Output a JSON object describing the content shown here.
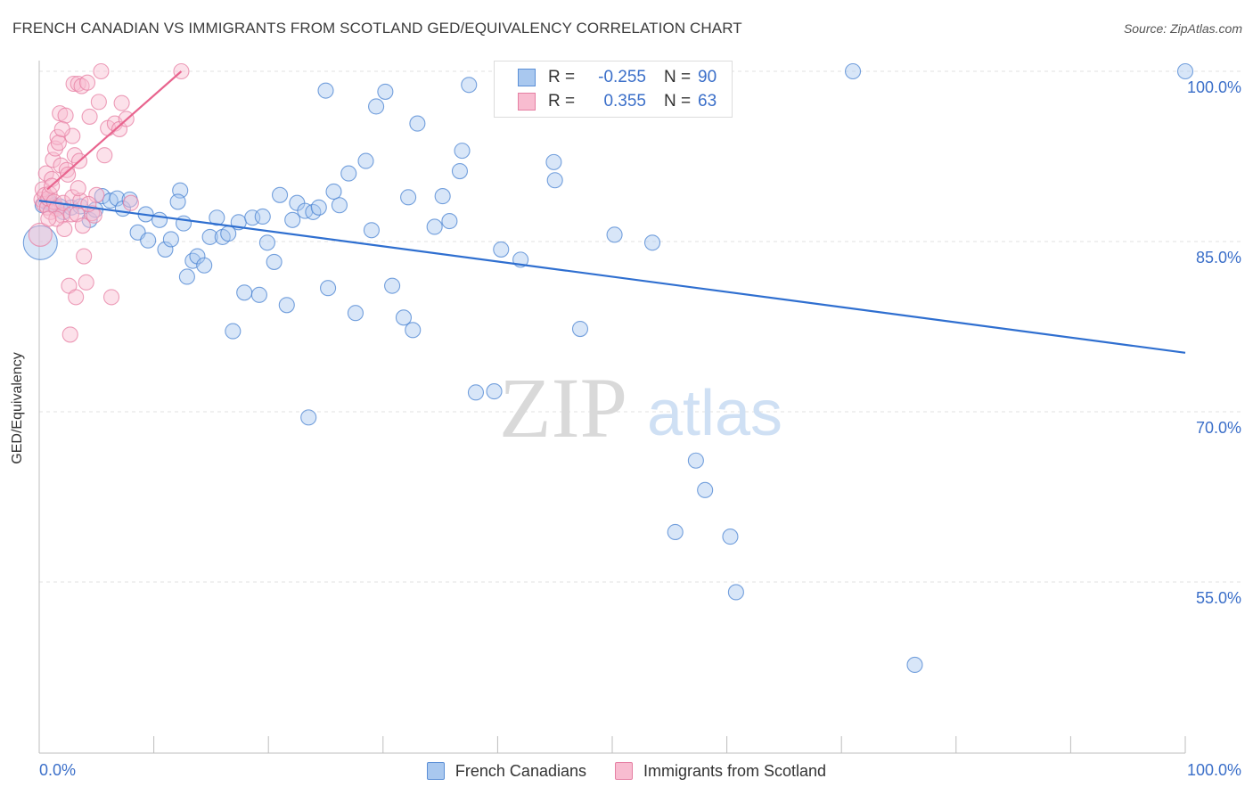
{
  "title": "FRENCH CANADIAN VS IMMIGRANTS FROM SCOTLAND GED/EQUIVALENCY CORRELATION CHART",
  "source": "Source: ZipAtlas.com",
  "watermark": {
    "zip": "ZIP",
    "atlas": "atlas"
  },
  "legend": {
    "r_label": "R =",
    "n_label": "N =",
    "rows": [
      {
        "r": "-0.255",
        "n": "90",
        "color": "#a9c8ef",
        "stroke": "#5b8fd6"
      },
      {
        "r": "0.355",
        "n": "63",
        "color": "#f8bcd0",
        "stroke": "#e57fa3"
      }
    ]
  },
  "chart_data": {
    "type": "scatter",
    "title": "FRENCH CANADIAN VS IMMIGRANTS FROM SCOTLAND GED/EQUIVALENCY CORRELATION CHART",
    "xlabel": "",
    "ylabel": "GED/Equivalency",
    "xlim": [
      0,
      100
    ],
    "ylim": [
      40,
      100
    ],
    "x_tick_labels": [
      "0.0%",
      "100.0%"
    ],
    "y_ticks": [
      55,
      70,
      85,
      100
    ],
    "y_tick_labels": [
      "55.0%",
      "70.0%",
      "85.0%",
      "100.0%"
    ],
    "grid": true,
    "legend_position": "bottom-center",
    "series": [
      {
        "name": "French Canadians",
        "color": "#a9c8ef",
        "stroke": "#4a83d2",
        "trend_color": "#2f6fd0",
        "trend": {
          "x": [
            0,
            100
          ],
          "y": [
            88.6,
            75.2
          ]
        },
        "points": [
          [
            0.1,
            84.9
          ],
          [
            0.3,
            88.2
          ],
          [
            0.6,
            88.5
          ],
          [
            1.0,
            88.4
          ],
          [
            1.3,
            88.2
          ],
          [
            1.8,
            88.1
          ],
          [
            2.1,
            87.6
          ],
          [
            2.8,
            88.0
          ],
          [
            3.6,
            88.1
          ],
          [
            4.4,
            86.9
          ],
          [
            4.9,
            87.8
          ],
          [
            5.5,
            89.0
          ],
          [
            6.2,
            88.6
          ],
          [
            6.8,
            88.8
          ],
          [
            7.3,
            87.9
          ],
          [
            7.9,
            88.7
          ],
          [
            8.6,
            85.8
          ],
          [
            9.3,
            87.4
          ],
          [
            9.5,
            85.1
          ],
          [
            10.5,
            86.9
          ],
          [
            11.0,
            84.3
          ],
          [
            11.5,
            85.2
          ],
          [
            12.3,
            89.5
          ],
          [
            12.6,
            86.6
          ],
          [
            12.9,
            81.9
          ],
          [
            13.4,
            83.3
          ],
          [
            13.8,
            83.7
          ],
          [
            14.4,
            82.9
          ],
          [
            14.9,
            85.4
          ],
          [
            15.5,
            87.1
          ],
          [
            16.0,
            85.4
          ],
          [
            16.5,
            85.7
          ],
          [
            16.9,
            77.1
          ],
          [
            17.4,
            86.7
          ],
          [
            17.9,
            80.5
          ],
          [
            18.6,
            87.1
          ],
          [
            19.2,
            80.3
          ],
          [
            19.5,
            87.2
          ],
          [
            19.9,
            84.9
          ],
          [
            20.5,
            83.2
          ],
          [
            21.0,
            89.1
          ],
          [
            21.6,
            79.4
          ],
          [
            22.1,
            86.9
          ],
          [
            22.5,
            88.4
          ],
          [
            23.2,
            87.7
          ],
          [
            23.5,
            69.5
          ],
          [
            23.9,
            87.6
          ],
          [
            24.4,
            88.0
          ],
          [
            25.0,
            98.3
          ],
          [
            25.2,
            80.9
          ],
          [
            25.7,
            89.4
          ],
          [
            26.2,
            88.2
          ],
          [
            27.0,
            91.0
          ],
          [
            27.6,
            78.7
          ],
          [
            28.5,
            92.1
          ],
          [
            29.0,
            86.0
          ],
          [
            29.4,
            96.9
          ],
          [
            30.2,
            98.2
          ],
          [
            30.8,
            81.1
          ],
          [
            31.8,
            78.3
          ],
          [
            32.2,
            88.9
          ],
          [
            32.6,
            77.2
          ],
          [
            33.0,
            95.4
          ],
          [
            34.5,
            86.3
          ],
          [
            35.2,
            89.0
          ],
          [
            35.8,
            86.8
          ],
          [
            36.7,
            91.2
          ],
          [
            36.9,
            93.0
          ],
          [
            37.5,
            98.8
          ],
          [
            38.1,
            71.7
          ],
          [
            39.7,
            71.8
          ],
          [
            40.3,
            84.3
          ],
          [
            42.0,
            83.4
          ],
          [
            44.9,
            92.0
          ],
          [
            45.0,
            90.4
          ],
          [
            47.2,
            77.3
          ],
          [
            48.3,
            100.1
          ],
          [
            50.2,
            85.6
          ],
          [
            52.0,
            100.2
          ],
          [
            53.5,
            84.9
          ],
          [
            55.5,
            59.4
          ],
          [
            57.3,
            65.7
          ],
          [
            58.1,
            63.1
          ],
          [
            60.3,
            59.0
          ],
          [
            60.8,
            54.1
          ],
          [
            76.4,
            47.7
          ],
          [
            71.0,
            100.0
          ],
          [
            100.0,
            100.0
          ],
          [
            46.8,
            100.1
          ],
          [
            12.1,
            88.5
          ]
        ]
      },
      {
        "name": "Immigrants from Scotland",
        "color": "#f8bcd0",
        "stroke": "#e77fa3",
        "trend_color": "#e8648e",
        "trend": {
          "x": [
            0.7,
            12.4
          ],
          "y": [
            89.6,
            100.0
          ]
        },
        "points": [
          [
            0.1,
            85.6
          ],
          [
            0.2,
            88.7
          ],
          [
            0.3,
            89.6
          ],
          [
            0.4,
            88.3
          ],
          [
            0.5,
            89.1
          ],
          [
            0.6,
            91.0
          ],
          [
            0.7,
            88.0
          ],
          [
            0.8,
            88.8
          ],
          [
            0.9,
            89.2
          ],
          [
            1.0,
            87.6
          ],
          [
            1.1,
            90.5
          ],
          [
            1.2,
            92.2
          ],
          [
            1.3,
            88.5
          ],
          [
            1.4,
            93.2
          ],
          [
            1.5,
            87.9
          ],
          [
            1.6,
            94.2
          ],
          [
            1.7,
            93.7
          ],
          [
            1.8,
            96.3
          ],
          [
            1.9,
            91.7
          ],
          [
            2.0,
            87.3
          ],
          [
            2.1,
            88.4
          ],
          [
            2.2,
            86.1
          ],
          [
            2.3,
            96.1
          ],
          [
            2.4,
            91.3
          ],
          [
            2.5,
            90.9
          ],
          [
            2.6,
            81.1
          ],
          [
            2.7,
            76.8
          ],
          [
            2.8,
            87.4
          ],
          [
            2.9,
            88.9
          ],
          [
            3.0,
            98.9
          ],
          [
            3.1,
            92.6
          ],
          [
            3.2,
            80.1
          ],
          [
            3.3,
            87.4
          ],
          [
            3.4,
            98.9
          ],
          [
            3.5,
            92.1
          ],
          [
            3.6,
            88.6
          ],
          [
            3.7,
            98.7
          ],
          [
            3.8,
            86.4
          ],
          [
            3.9,
            83.7
          ],
          [
            4.1,
            81.4
          ],
          [
            4.2,
            99.0
          ],
          [
            4.4,
            96.0
          ],
          [
            4.6,
            87.5
          ],
          [
            4.8,
            87.3
          ],
          [
            5.0,
            89.1
          ],
          [
            5.2,
            97.3
          ],
          [
            5.4,
            100.0
          ],
          [
            5.7,
            92.6
          ],
          [
            6.0,
            95.0
          ],
          [
            6.3,
            80.1
          ],
          [
            6.6,
            95.4
          ],
          [
            7.0,
            94.9
          ],
          [
            7.2,
            97.2
          ],
          [
            7.6,
            95.8
          ],
          [
            8.0,
            88.4
          ],
          [
            12.4,
            100.0
          ],
          [
            1.5,
            87.0
          ],
          [
            2.9,
            94.3
          ],
          [
            1.1,
            89.9
          ],
          [
            4.3,
            88.3
          ],
          [
            0.8,
            87.0
          ],
          [
            2.0,
            94.9
          ],
          [
            3.4,
            89.7
          ]
        ]
      }
    ]
  }
}
